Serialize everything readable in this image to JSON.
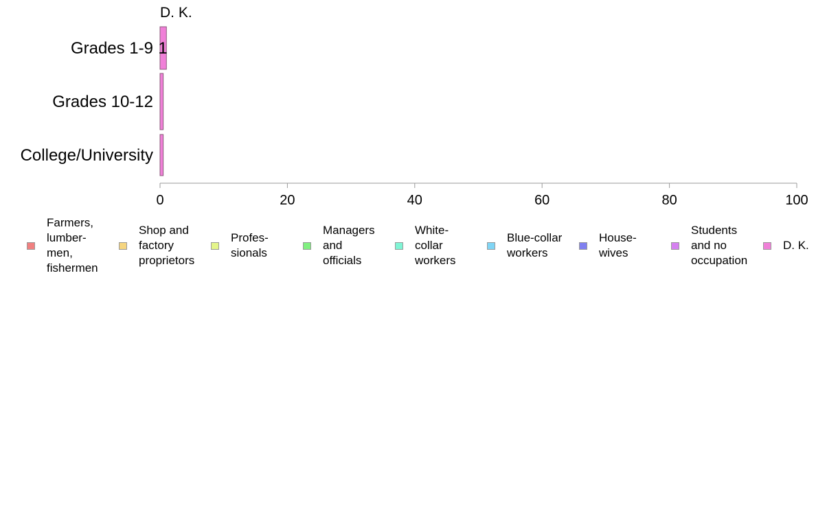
{
  "chart_data": {
    "type": "bar",
    "orientation": "horizontal",
    "stacked": true,
    "top_label": "D. K.",
    "categories": [
      "Grades 1-9",
      "Grades 10-12",
      "College/University"
    ],
    "series": [
      {
        "name": "Farmers,\nlumber-\nmen,\nfishermen",
        "color": "#f08080",
        "values": [
          0,
          0,
          0
        ]
      },
      {
        "name": "Shop and\nfactory\nproprietors",
        "color": "#f5d580",
        "values": [
          0,
          0,
          0
        ]
      },
      {
        "name": "Profes-\nsionals",
        "color": "#e4f58a",
        "values": [
          0,
          0,
          0
        ]
      },
      {
        "name": "Managers\nand\nofficials",
        "color": "#80f080",
        "values": [
          0,
          0,
          0
        ]
      },
      {
        "name": "White-\ncollar\nworkers",
        "color": "#80f5d5",
        "values": [
          0,
          0,
          0
        ]
      },
      {
        "name": "Blue-collar\nworkers",
        "color": "#80d5f5",
        "values": [
          0,
          0,
          0
        ]
      },
      {
        "name": "House-\nwives",
        "color": "#8080f0",
        "values": [
          0,
          0,
          0
        ]
      },
      {
        "name": "Students\nand no\noccupation",
        "color": "#d580f0",
        "values": [
          0,
          0,
          0
        ]
      },
      {
        "name": "D. K.",
        "color": "#f080d8",
        "values": [
          1,
          0.5,
          0.5
        ]
      }
    ],
    "data_labels": [
      "1",
      "",
      ""
    ],
    "xlim": [
      0,
      100
    ],
    "xticks": [
      "0",
      "20",
      "40",
      "60",
      "80",
      "100"
    ],
    "xlabel": "",
    "ylabel": "",
    "grid": false,
    "legend_position": "bottom"
  }
}
